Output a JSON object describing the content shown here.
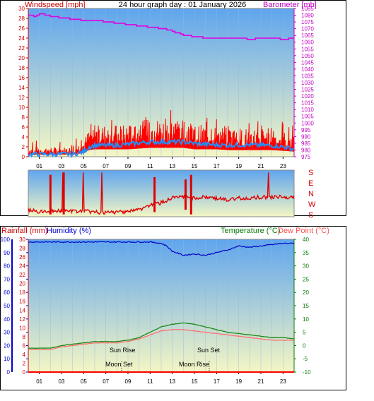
{
  "header": {
    "windspeed_label": "Windspeed [mph]",
    "title": "24 hour graph day : 01 January 2026",
    "barometer_label": "Barometer [mb]"
  },
  "lower_header": {
    "rainfall_label": "Rainfall (mm)",
    "humidity_label": "Humidity (%)",
    "temperature_label": "Temperature (°C)",
    "dewpoint_label": "Dew Point (°C)"
  },
  "compass": [
    "S",
    "E",
    "N",
    "W",
    "S"
  ],
  "annotations": {
    "sun_rise": "Sun Rise",
    "sun_set": "Sun Set",
    "moon_set": "Moon Set",
    "moon_rise": "Moon Rise"
  },
  "colors": {
    "windspeed_gust": "#ff0000",
    "windspeed_avg": "#1e90ff",
    "barometer": "#e000e0",
    "direction": "#e00000",
    "humidity": "#0000c0",
    "temperature": "#1a8a1a",
    "dewpoint": "#ff7070",
    "rainfall": "#ff0000",
    "sky_top": "#5fa5ee",
    "sky_bottom": "#f4f6c4"
  },
  "chart_data": [
    {
      "type": "line",
      "panel": "wind-barometer",
      "xlabel": "",
      "x_ticks": [
        "01",
        "03",
        "05",
        "07",
        "09",
        "11",
        "13",
        "15",
        "17",
        "19",
        "21",
        "23"
      ],
      "left_axis": {
        "label": "Windspeed [mph]",
        "ticks": [
          0,
          2,
          4,
          6,
          8,
          10,
          12,
          14,
          16,
          18,
          20,
          22,
          24,
          26,
          28,
          30
        ],
        "ylim": [
          0,
          30
        ]
      },
      "right_axis": {
        "label": "Barometer [mb]",
        "ticks": [
          975,
          980,
          985,
          990,
          995,
          1000,
          1005,
          1010,
          1015,
          1020,
          1025,
          1030,
          1035,
          1040,
          1045,
          1050,
          1055,
          1060,
          1065,
          1070,
          1075,
          1080,
          1085
        ],
        "ylim": [
          975,
          1085
        ]
      },
      "series": [
        {
          "name": "Windspeed [mph]",
          "axis": "left",
          "x": [
            0,
            1,
            2,
            3,
            4,
            5,
            5.5,
            6,
            7,
            8,
            9,
            10,
            11,
            12,
            13,
            14,
            15,
            16,
            17,
            18,
            19,
            20,
            21,
            22,
            23,
            24
          ],
          "values": [
            1.5,
            1.5,
            1.5,
            1.5,
            1.5,
            2.5,
            4.5,
            5,
            5,
            5,
            5,
            5.5,
            6,
            6,
            6,
            6,
            5,
            5,
            5,
            4.5,
            4.5,
            4.5,
            4.5,
            4.5,
            4,
            3.5
          ]
        },
        {
          "name": "Wind Average",
          "axis": "left",
          "x": [
            0,
            1,
            2,
            3,
            4,
            5,
            5.5,
            6,
            7,
            8,
            9,
            10,
            11,
            12,
            13,
            14,
            15,
            16,
            17,
            18,
            19,
            20,
            21,
            22,
            23,
            24
          ],
          "values": [
            0.5,
            0.5,
            0.5,
            0.5,
            0.5,
            1,
            2,
            2.3,
            2.3,
            2.3,
            2.5,
            2.8,
            3,
            3,
            3,
            3,
            2.7,
            2.5,
            2.4,
            2.3,
            2.4,
            2.4,
            2.3,
            2.3,
            2,
            1.5
          ]
        },
        {
          "name": "Barometer [mb]",
          "axis": "right",
          "x": [
            0,
            0.5,
            1,
            1.5,
            2,
            3,
            4,
            5,
            6,
            7,
            8,
            9,
            10,
            11,
            12,
            13,
            14,
            15,
            16,
            17,
            18,
            19,
            20,
            21,
            22,
            23,
            24
          ],
          "values": [
            1080,
            1079,
            1081,
            1080,
            1079,
            1078,
            1077,
            1076,
            1076,
            1075,
            1074,
            1073,
            1072,
            1071,
            1070,
            1068,
            1065,
            1064,
            1063,
            1063,
            1063,
            1063,
            1062,
            1063,
            1063,
            1062,
            1063
          ]
        }
      ]
    },
    {
      "type": "line",
      "panel": "wind-direction",
      "right_labels": [
        "S",
        "E",
        "N",
        "W",
        "S"
      ],
      "series": [
        {
          "name": "Wind Direction",
          "x": [
            0,
            1,
            2,
            3,
            4,
            5,
            6,
            7,
            8,
            9,
            10,
            11,
            12,
            13,
            14,
            15,
            16,
            17,
            18,
            19,
            20,
            21,
            22,
            23,
            24
          ],
          "values": [
            0.85,
            0.9,
            0.88,
            0.87,
            0.88,
            0.88,
            0.9,
            0.92,
            0.9,
            0.88,
            0.85,
            0.75,
            0.7,
            0.6,
            0.58,
            0.6,
            0.58,
            0.6,
            0.65,
            0.6,
            0.6,
            0.58,
            0.58,
            0.57,
            0.6
          ]
        }
      ]
    },
    {
      "type": "line",
      "panel": "temp-humidity-rain",
      "x_ticks": [
        "01",
        "03",
        "05",
        "07",
        "09",
        "11",
        "13",
        "15",
        "17",
        "19",
        "21",
        "23"
      ],
      "left_axis_humidity": {
        "label": "Humidity (%)",
        "ticks": [
          0,
          10,
          20,
          30,
          40,
          50,
          60,
          70,
          80,
          90,
          100
        ],
        "ylim": [
          0,
          100
        ]
      },
      "left_axis_rain": {
        "label": "Rainfall (mm)",
        "ticks": [
          0,
          2,
          4,
          6,
          8,
          10,
          12,
          14,
          16,
          18,
          20,
          22,
          24,
          26,
          28,
          30
        ],
        "ylim": [
          0,
          30
        ]
      },
      "right_axis_temp": {
        "label": "Temperature (°C)",
        "ticks": [
          -10,
          -5,
          0,
          5,
          10,
          15,
          20,
          25,
          30,
          35,
          40
        ],
        "ylim": [
          -10,
          40
        ]
      },
      "series": [
        {
          "name": "Humidity (%)",
          "axis": "humidity",
          "x": [
            0,
            2,
            4,
            6,
            8,
            10,
            11,
            12,
            12.5,
            13,
            14,
            15,
            16,
            17,
            18,
            19,
            20,
            21,
            22,
            23,
            24
          ],
          "values": [
            98,
            98,
            98,
            98,
            98,
            98,
            98,
            97,
            95,
            91,
            88,
            89,
            88,
            90,
            92,
            95,
            94,
            95,
            96,
            97,
            97
          ]
        },
        {
          "name": "Temperature (°C)",
          "axis": "temp",
          "x": [
            0,
            2,
            3,
            4,
            5,
            6,
            7,
            8,
            9,
            10,
            11,
            12,
            13,
            14,
            15,
            16,
            17,
            18,
            19,
            20,
            21,
            22,
            23,
            24
          ],
          "values": [
            -1,
            -1,
            0,
            0.5,
            1,
            1.5,
            1.5,
            1.5,
            2,
            3,
            5,
            7,
            8,
            8.5,
            8,
            7,
            6,
            5,
            4.5,
            4,
            3.5,
            3,
            3,
            2.5
          ]
        },
        {
          "name": "Dew Point (°C)",
          "axis": "temp",
          "x": [
            0,
            2,
            3,
            4,
            5,
            6,
            7,
            8,
            9,
            10,
            11,
            12,
            13,
            14,
            15,
            16,
            17,
            18,
            19,
            20,
            21,
            22,
            23,
            24
          ],
          "values": [
            -1.5,
            -1.5,
            -0.5,
            0,
            0.5,
            1,
            1,
            1,
            1.5,
            2.5,
            4,
            5.5,
            6,
            6,
            5.5,
            5,
            4.5,
            4,
            3.5,
            3,
            2.5,
            2,
            2,
            2
          ]
        },
        {
          "name": "Rainfall (mm)",
          "axis": "rain",
          "x": [
            0,
            24
          ],
          "values": [
            0,
            0
          ]
        }
      ],
      "annotations": [
        {
          "text": "Sun Rise",
          "x": 8
        },
        {
          "text": "Sun Set",
          "x": 16
        },
        {
          "text": "Moon Set",
          "x": 8
        },
        {
          "text": "Moon Rise",
          "x": 16
        }
      ]
    }
  ]
}
